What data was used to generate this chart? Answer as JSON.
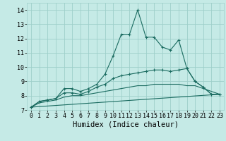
{
  "xlabel": "Humidex (Indice chaleur)",
  "xlim": [
    -0.5,
    23.5
  ],
  "ylim": [
    7,
    14.5
  ],
  "yticks": [
    7,
    8,
    9,
    10,
    11,
    12,
    13,
    14
  ],
  "xticks": [
    0,
    1,
    2,
    3,
    4,
    5,
    6,
    7,
    8,
    9,
    10,
    11,
    12,
    13,
    14,
    15,
    16,
    17,
    18,
    19,
    20,
    21,
    22,
    23
  ],
  "bg_color": "#c5eae6",
  "grid_color": "#9ecfca",
  "line_color": "#1a6b60",
  "line1_x": [
    0,
    1,
    2,
    3,
    4,
    5,
    6,
    7,
    8,
    9,
    10,
    11,
    12,
    13,
    14,
    15,
    16,
    17,
    18,
    19,
    20,
    21,
    22,
    23
  ],
  "line1_y": [
    7.2,
    7.6,
    7.7,
    7.8,
    8.5,
    8.5,
    8.3,
    8.5,
    8.8,
    9.5,
    10.8,
    12.3,
    12.3,
    14.0,
    12.1,
    12.1,
    11.4,
    11.2,
    11.9,
    9.9,
    9.0,
    8.6,
    8.1,
    8.1
  ],
  "line2_x": [
    0,
    1,
    2,
    3,
    4,
    5,
    6,
    7,
    8,
    9,
    10,
    11,
    12,
    13,
    14,
    15,
    16,
    17,
    18,
    19,
    20,
    21,
    22,
    23
  ],
  "line2_y": [
    7.2,
    7.6,
    7.7,
    7.8,
    8.2,
    8.2,
    8.1,
    8.3,
    8.6,
    8.8,
    9.2,
    9.4,
    9.5,
    9.6,
    9.7,
    9.8,
    9.8,
    9.7,
    9.8,
    9.9,
    9.0,
    8.6,
    8.1,
    8.1
  ],
  "line3_x": [
    0,
    1,
    2,
    3,
    4,
    5,
    6,
    7,
    8,
    9,
    10,
    11,
    12,
    13,
    14,
    15,
    16,
    17,
    18,
    19,
    20,
    21,
    22,
    23
  ],
  "line3_y": [
    7.2,
    7.5,
    7.6,
    7.7,
    7.9,
    8.0,
    8.0,
    8.1,
    8.2,
    8.3,
    8.4,
    8.5,
    8.6,
    8.7,
    8.7,
    8.8,
    8.8,
    8.8,
    8.8,
    8.7,
    8.7,
    8.5,
    8.3,
    8.1
  ],
  "line4_x": [
    0,
    23
  ],
  "line4_y": [
    7.2,
    8.1
  ],
  "xlabel_fontsize": 7.5,
  "tick_fontsize": 6.0,
  "lw": 0.8,
  "marker_size": 3.0
}
